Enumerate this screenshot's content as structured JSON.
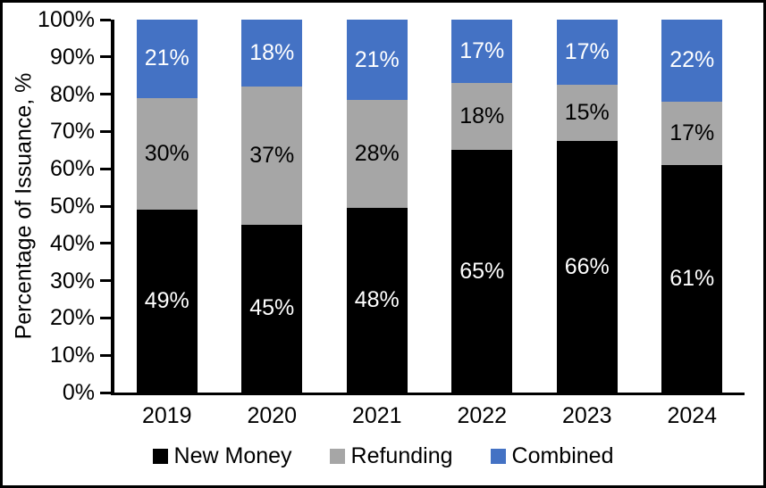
{
  "chart_data": {
    "type": "bar",
    "stacked": true,
    "title": "",
    "xlabel": "",
    "ylabel": "Percentage of Issuance, %",
    "ylim": [
      0,
      100
    ],
    "ytick_step": 10,
    "ytick_labels": [
      "0%",
      "10%",
      "20%",
      "30%",
      "40%",
      "50%",
      "60%",
      "70%",
      "80%",
      "90%",
      "100%"
    ],
    "categories": [
      "2019",
      "2020",
      "2021",
      "2022",
      "2023",
      "2024"
    ],
    "series": [
      {
        "name": "New Money",
        "color": "#000000",
        "label_color": "#ffffff",
        "values": [
          49,
          45,
          48,
          65,
          66,
          61
        ],
        "labels": [
          "49%",
          "45%",
          "48%",
          "65%",
          "66%",
          "61%"
        ]
      },
      {
        "name": "Refunding",
        "color": "#A6A6A6",
        "label_color": "#000000",
        "values": [
          30,
          37,
          28,
          18,
          15,
          17
        ],
        "labels": [
          "30%",
          "37%",
          "28%",
          "18%",
          "15%",
          "17%"
        ]
      },
      {
        "name": "Combined",
        "color": "#4472C4",
        "label_color": "#ffffff",
        "values": [
          21,
          18,
          21,
          17,
          17,
          22
        ],
        "labels": [
          "21%",
          "18%",
          "21%",
          "17%",
          "17%",
          "22%"
        ]
      }
    ],
    "legend_position": "bottom",
    "grid": false,
    "axis_color": "#000000",
    "background": "#ffffff"
  }
}
